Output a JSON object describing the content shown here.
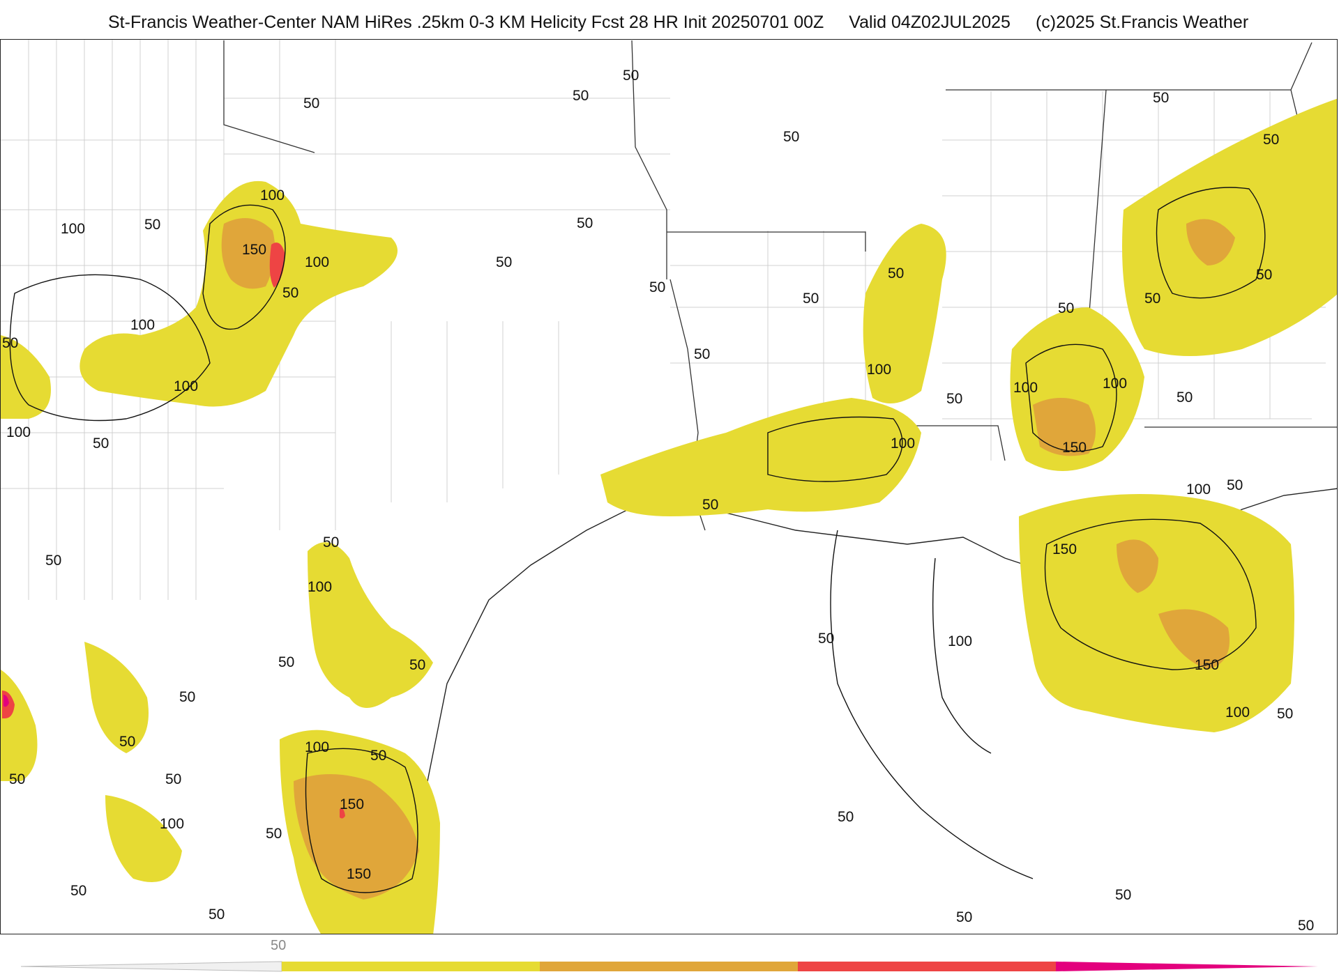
{
  "header": {
    "title": "St-Francis Weather-Center NAM HiRes .25km 0-3 KM Helicity Fcst 28 HR Init 20250701 00Z",
    "valid": "Valid 04Z02JUL2025",
    "copyright": "(c)2025 St.Francis Weather"
  },
  "colors": {
    "level_50": "#e6db33",
    "level_100": "#e0a63a",
    "level_150": "#ee4444",
    "level_200": "#e3007d",
    "contour": "#111111",
    "borders": "#cccccc"
  },
  "contour_labels": [
    "50",
    "100",
    "150"
  ],
  "colorbar": {
    "tick_label": "50"
  }
}
